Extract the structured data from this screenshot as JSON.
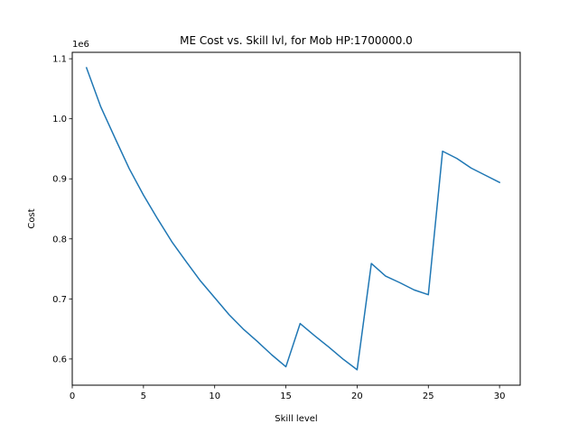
{
  "chart_data": {
    "type": "line",
    "title": "ME Cost vs. Skill lvl, for Mob HP:1700000.0",
    "xlabel": "Skill level",
    "ylabel": "Cost",
    "y_offset_label": "1e6",
    "xlim": [
      0,
      31.45
    ],
    "ylim": [
      0.5563,
      1.1107
    ],
    "x_ticks": [
      0,
      5,
      10,
      15,
      20,
      25,
      30
    ],
    "y_ticks": [
      0.6,
      0.7,
      0.8,
      0.9,
      1.0,
      1.1
    ],
    "x_tick_labels": [
      "0",
      "5",
      "10",
      "15",
      "20",
      "25",
      "30"
    ],
    "y_tick_labels": [
      "0.6",
      "0.7",
      "0.8",
      "0.9",
      "1.0",
      "1.1"
    ],
    "grid": false,
    "series": [
      {
        "color": "#1f77b4",
        "x": [
          1,
          2,
          3,
          4,
          5,
          6,
          7,
          8,
          9,
          10,
          11,
          12,
          13,
          14,
          15,
          16,
          17,
          18,
          19,
          20,
          21,
          22,
          23,
          24,
          25,
          26,
          27,
          28,
          29,
          30
        ],
        "y": [
          1.085,
          1.02,
          0.968,
          0.917,
          0.873,
          0.833,
          0.795,
          0.762,
          0.73,
          0.702,
          0.674,
          0.65,
          0.629,
          0.607,
          0.587,
          0.659,
          0.639,
          0.62,
          0.6,
          0.582,
          0.759,
          0.738,
          0.727,
          0.715,
          0.707,
          0.946,
          0.934,
          0.918,
          0.906,
          0.894
        ]
      }
    ]
  }
}
